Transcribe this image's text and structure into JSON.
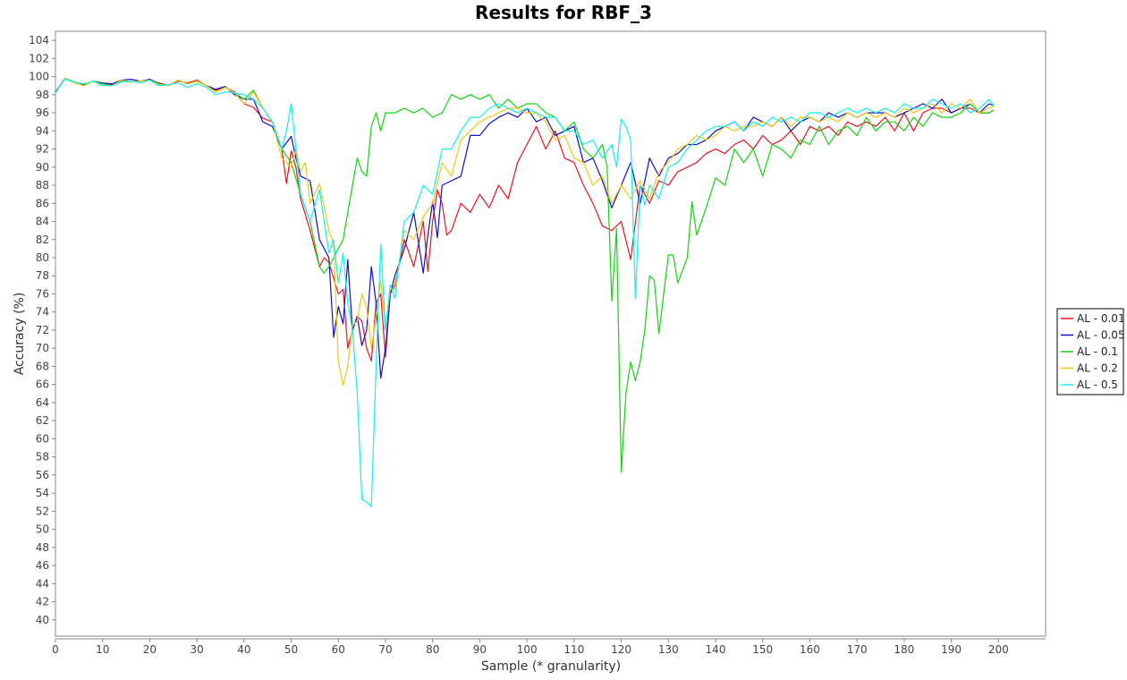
{
  "chart_data": {
    "type": "line",
    "title": "Results for RBF_3",
    "xlabel": "Sample (* granularity)",
    "ylabel": "Accuracy (%)",
    "xlim": [
      0,
      210
    ],
    "ylim": [
      38.2,
      105
    ],
    "x_ticks": [
      0,
      10,
      20,
      30,
      40,
      50,
      60,
      70,
      80,
      90,
      100,
      110,
      120,
      130,
      140,
      150,
      160,
      170,
      180,
      190,
      200
    ],
    "y_ticks": [
      40,
      42,
      44,
      46,
      48,
      50,
      52,
      54,
      56,
      58,
      60,
      62,
      64,
      66,
      68,
      70,
      72,
      74,
      76,
      78,
      80,
      82,
      84,
      86,
      88,
      90,
      92,
      94,
      96,
      98,
      100,
      102,
      104
    ],
    "legend_position": "right",
    "grid": false,
    "series": [
      {
        "name": "AL - 0.01",
        "color": "#e8141e",
        "x": [
          0,
          2,
          4,
          6,
          8,
          10,
          12,
          14,
          16,
          18,
          20,
          22,
          24,
          26,
          28,
          30,
          32,
          34,
          36,
          38,
          40,
          42,
          44,
          46,
          48,
          49,
          50,
          51,
          52,
          54,
          56,
          57,
          58,
          60,
          61,
          62,
          63,
          64,
          65,
          66,
          67,
          68,
          69,
          70,
          71,
          72,
          74,
          76,
          78,
          79,
          80,
          81,
          82,
          83,
          84,
          86,
          88,
          90,
          92,
          94,
          96,
          98,
          100,
          102,
          104,
          106,
          108,
          110,
          112,
          114,
          116,
          118,
          120,
          122,
          124,
          126,
          128,
          130,
          132,
          134,
          136,
          138,
          140,
          142,
          144,
          146,
          148,
          150,
          152,
          154,
          156,
          158,
          160,
          162,
          164,
          166,
          168,
          170,
          172,
          174,
          176,
          178,
          180,
          182,
          184,
          186,
          188,
          190,
          192,
          194,
          196,
          198,
          199
        ],
        "values": [
          98.2,
          99.8,
          99.4,
          99.0,
          99.5,
          99.2,
          99.1,
          99.6,
          99.4,
          99.5,
          99.6,
          99.3,
          99.0,
          99.5,
          99.3,
          99.6,
          99.0,
          98.5,
          98.8,
          98.3,
          97.0,
          96.6,
          95.4,
          95.0,
          92.0,
          88.2,
          91.8,
          90.0,
          86.5,
          83.0,
          79.0,
          80.0,
          79.5,
          76.0,
          76.5,
          70.0,
          72.0,
          73.5,
          73.0,
          70.0,
          68.6,
          75.0,
          76.0,
          69.0,
          76.0,
          77.0,
          82.0,
          79.0,
          84.0,
          78.5,
          84.0,
          87.5,
          86.0,
          82.5,
          83.0,
          86.0,
          85.0,
          87.0,
          85.5,
          88.0,
          86.5,
          90.5,
          92.5,
          94.5,
          92.0,
          94.0,
          91.0,
          90.5,
          88.0,
          86.0,
          83.5,
          83.0,
          84.0,
          79.8,
          88.0,
          86.0,
          88.5,
          88.0,
          89.5,
          90.0,
          90.5,
          91.5,
          92.0,
          91.5,
          92.5,
          93.0,
          92.0,
          93.5,
          92.5,
          93.0,
          94.0,
          92.5,
          94.5,
          94.0,
          94.5,
          93.5,
          95.0,
          94.5,
          95.0,
          94.5,
          95.5,
          94.0,
          96.0,
          94.0,
          96.0,
          96.5,
          96.5,
          96.0,
          96.5,
          96.5,
          96.0,
          96.0,
          96.3
        ]
      },
      {
        "name": "AL - 0.05",
        "color": "#1010c8",
        "x": [
          0,
          2,
          4,
          6,
          8,
          10,
          12,
          14,
          16,
          18,
          20,
          22,
          24,
          26,
          28,
          30,
          32,
          34,
          36,
          38,
          40,
          42,
          44,
          46,
          48,
          50,
          51,
          52,
          54,
          56,
          58,
          59,
          60,
          61,
          62,
          63,
          64,
          65,
          66,
          67,
          68,
          69,
          70,
          71,
          72,
          74,
          76,
          78,
          79,
          80,
          81,
          82,
          84,
          86,
          88,
          90,
          92,
          94,
          96,
          98,
          100,
          102,
          104,
          106,
          108,
          110,
          112,
          114,
          116,
          118,
          120,
          122,
          124,
          126,
          128,
          130,
          132,
          134,
          136,
          138,
          140,
          142,
          144,
          146,
          148,
          150,
          152,
          154,
          156,
          158,
          160,
          162,
          164,
          166,
          168,
          170,
          172,
          174,
          176,
          178,
          180,
          182,
          184,
          186,
          188,
          190,
          192,
          194,
          196,
          198,
          199
        ],
        "values": [
          98.3,
          99.8,
          99.4,
          99.1,
          99.5,
          99.3,
          99.2,
          99.6,
          99.7,
          99.5,
          99.7,
          99.2,
          99.0,
          99.6,
          99.2,
          99.5,
          99.0,
          98.6,
          98.9,
          98.0,
          97.5,
          97.5,
          95.0,
          94.5,
          92.0,
          93.4,
          91.0,
          89.0,
          88.5,
          82.0,
          80.0,
          71.2,
          74.6,
          72.7,
          79.8,
          72.0,
          73.5,
          70.3,
          72.0,
          79.0,
          75.0,
          66.7,
          70.0,
          76.0,
          78.0,
          81.0,
          85.0,
          78.3,
          82.5,
          86.2,
          82.2,
          88.0,
          88.5,
          89.0,
          93.5,
          93.5,
          94.8,
          95.5,
          96.0,
          95.5,
          96.5,
          95.0,
          95.5,
          93.5,
          94.0,
          94.5,
          90.5,
          91.0,
          88.5,
          85.5,
          88.0,
          90.5,
          86.0,
          91.0,
          89.0,
          91.0,
          91.5,
          92.5,
          92.5,
          93.0,
          94.0,
          94.5,
          95.0,
          94.0,
          95.5,
          95.0,
          94.5,
          95.5,
          94.0,
          95.0,
          95.5,
          95.0,
          96.0,
          95.5,
          96.0,
          95.5,
          96.0,
          96.0,
          96.0,
          95.5,
          96.0,
          96.5,
          97.0,
          96.5,
          97.5,
          96.0,
          96.5,
          97.0,
          96.0,
          97.0,
          96.8
        ]
      },
      {
        "name": "AL - 0.1",
        "color": "#14d214",
        "x": [
          0,
          2,
          4,
          6,
          8,
          10,
          12,
          14,
          16,
          18,
          20,
          22,
          24,
          26,
          28,
          30,
          32,
          34,
          36,
          38,
          40,
          42,
          44,
          46,
          48,
          50,
          52,
          54,
          56,
          57,
          58,
          60,
          61,
          62,
          64,
          65,
          66,
          67,
          68,
          69,
          70,
          72,
          74,
          76,
          78,
          80,
          82,
          84,
          86,
          88,
          90,
          92,
          94,
          96,
          98,
          100,
          102,
          104,
          106,
          108,
          110,
          112,
          114,
          116,
          117,
          118,
          119,
          120,
          121,
          122,
          123,
          124,
          125,
          126,
          127,
          128,
          130,
          131,
          132,
          134,
          135,
          136,
          138,
          140,
          142,
          144,
          146,
          148,
          150,
          152,
          154,
          156,
          158,
          160,
          162,
          164,
          166,
          168,
          170,
          172,
          174,
          176,
          178,
          180,
          182,
          184,
          186,
          188,
          190,
          192,
          194,
          196,
          198,
          199
        ],
        "values": [
          98.2,
          99.8,
          99.4,
          99.0,
          99.5,
          99.2,
          99.0,
          99.5,
          99.4,
          99.5,
          99.6,
          99.2,
          99.0,
          99.6,
          99.2,
          99.5,
          99.0,
          98.3,
          98.8,
          98.2,
          97.5,
          98.5,
          96.5,
          95.0,
          92.0,
          90.5,
          87.0,
          84.0,
          79.0,
          78.3,
          79.0,
          81.0,
          82.0,
          85.0,
          91.0,
          89.5,
          89.0,
          94.5,
          96.0,
          94.0,
          96.0,
          96.0,
          96.5,
          96.0,
          96.5,
          95.5,
          96.0,
          98.0,
          97.5,
          98.0,
          97.5,
          98.0,
          96.5,
          97.5,
          96.5,
          97.0,
          97.0,
          96.0,
          95.5,
          94.0,
          95.0,
          92.0,
          91.0,
          92.5,
          90.0,
          75.2,
          83.2,
          56.3,
          65.0,
          68.5,
          66.4,
          68.5,
          72.0,
          78.0,
          77.5,
          71.6,
          80.3,
          80.3,
          77.2,
          80.0,
          86.2,
          82.5,
          85.5,
          88.8,
          88.0,
          92.0,
          90.5,
          92.0,
          89.0,
          92.5,
          92.0,
          91.0,
          93.0,
          92.5,
          94.5,
          92.5,
          94.0,
          94.5,
          93.5,
          95.5,
          94.0,
          95.0,
          95.0,
          94.0,
          95.5,
          94.5,
          96.0,
          95.5,
          95.5,
          96.0,
          97.0,
          96.0,
          96.0,
          96.3
        ]
      },
      {
        "name": "AL - 0.2",
        "color": "#f0c814",
        "x": [
          0,
          2,
          4,
          6,
          8,
          10,
          12,
          14,
          16,
          18,
          20,
          22,
          24,
          26,
          28,
          30,
          32,
          34,
          36,
          38,
          40,
          42,
          44,
          46,
          48,
          50,
          51,
          52,
          53,
          54,
          56,
          58,
          59,
          60,
          61,
          62,
          63,
          64,
          65,
          66,
          67,
          68,
          69,
          70,
          71,
          72,
          74,
          76,
          78,
          80,
          82,
          84,
          86,
          88,
          90,
          92,
          94,
          96,
          98,
          100,
          102,
          104,
          106,
          108,
          110,
          112,
          114,
          116,
          118,
          120,
          122,
          124,
          126,
          128,
          130,
          132,
          134,
          136,
          138,
          140,
          142,
          144,
          146,
          148,
          150,
          152,
          154,
          156,
          158,
          160,
          162,
          164,
          166,
          168,
          170,
          172,
          174,
          176,
          178,
          180,
          182,
          184,
          186,
          188,
          190,
          192,
          194,
          196,
          198,
          199
        ],
        "values": [
          98.2,
          99.8,
          99.3,
          99.0,
          99.5,
          99.0,
          99.0,
          99.6,
          99.4,
          99.5,
          99.6,
          99.1,
          99.0,
          99.6,
          99.2,
          99.5,
          99.0,
          98.3,
          98.8,
          98.2,
          97.0,
          98.3,
          96.5,
          95.0,
          91.0,
          90.0,
          92.0,
          89.5,
          90.5,
          86.0,
          88.2,
          83.0,
          81.5,
          68.5,
          65.9,
          68.0,
          72.5,
          73.0,
          76.0,
          74.5,
          70.0,
          73.5,
          77.5,
          72.0,
          76.5,
          76.5,
          83.0,
          82.0,
          84.5,
          86.0,
          90.5,
          89.0,
          93.0,
          94.0,
          95.0,
          95.5,
          96.0,
          96.5,
          96.5,
          96.0,
          96.0,
          95.0,
          93.0,
          93.5,
          91.0,
          90.5,
          88.0,
          89.0,
          86.0,
          88.0,
          86.5,
          88.5,
          86.5,
          89.5,
          90.5,
          92.0,
          92.5,
          93.5,
          93.0,
          93.5,
          94.5,
          94.0,
          94.5,
          94.5,
          95.0,
          94.5,
          95.5,
          94.5,
          95.5,
          95.5,
          95.0,
          95.5,
          95.0,
          96.0,
          95.5,
          96.0,
          95.5,
          96.0,
          95.5,
          96.5,
          96.0,
          96.5,
          97.0,
          96.0,
          97.0,
          96.5,
          97.5,
          96.0,
          96.5,
          96.7
        ]
      },
      {
        "name": "AL - 0.5",
        "color": "#14f0f0",
        "x": [
          0,
          2,
          4,
          6,
          8,
          10,
          12,
          14,
          16,
          18,
          20,
          22,
          24,
          26,
          28,
          30,
          32,
          34,
          36,
          38,
          40,
          42,
          44,
          46,
          48,
          49,
          50,
          51,
          52,
          54,
          56,
          58,
          59,
          60,
          61,
          62,
          63,
          64,
          65,
          66,
          67,
          68,
          69,
          70,
          71,
          72,
          74,
          76,
          78,
          80,
          82,
          84,
          86,
          88,
          90,
          92,
          94,
          96,
          98,
          100,
          102,
          104,
          106,
          108,
          110,
          112,
          114,
          116,
          118,
          119,
          120,
          121,
          122,
          123,
          124,
          125,
          126,
          128,
          130,
          132,
          134,
          136,
          138,
          140,
          142,
          144,
          146,
          148,
          150,
          152,
          154,
          156,
          158,
          160,
          162,
          164,
          166,
          168,
          170,
          172,
          174,
          176,
          178,
          180,
          182,
          184,
          186,
          188,
          190,
          192,
          194,
          196,
          198,
          199
        ],
        "values": [
          98.2,
          99.7,
          99.4,
          99.2,
          99.5,
          99.0,
          99.0,
          99.4,
          99.5,
          99.3,
          99.6,
          99.0,
          99.1,
          99.3,
          98.8,
          99.2,
          98.8,
          98.0,
          98.3,
          98.2,
          98.0,
          97.5,
          96.5,
          95.0,
          92.0,
          94.0,
          97.0,
          92.0,
          87.0,
          84.0,
          87.5,
          80.5,
          82.0,
          77.2,
          80.5,
          75.0,
          72.0,
          65.0,
          53.3,
          53.0,
          52.5,
          68.0,
          81.5,
          72.0,
          77.0,
          75.5,
          84.0,
          85.0,
          88.0,
          87.0,
          92.0,
          92.0,
          94.0,
          95.5,
          95.5,
          96.5,
          97.0,
          96.5,
          96.0,
          96.5,
          96.0,
          95.5,
          95.5,
          94.0,
          94.0,
          92.5,
          93.0,
          91.0,
          92.5,
          90.0,
          95.3,
          94.5,
          93.0,
          75.5,
          88.0,
          85.8,
          88.0,
          86.5,
          90.0,
          90.5,
          92.0,
          93.0,
          94.0,
          94.5,
          94.5,
          95.0,
          94.0,
          95.0,
          94.5,
          95.5,
          95.0,
          95.5,
          95.0,
          96.0,
          96.0,
          95.5,
          96.0,
          96.5,
          96.0,
          96.5,
          96.0,
          96.5,
          96.0,
          97.0,
          96.5,
          96.5,
          97.5,
          97.0,
          96.5,
          97.0,
          96.0,
          96.5,
          97.5,
          96.8
        ]
      }
    ]
  }
}
